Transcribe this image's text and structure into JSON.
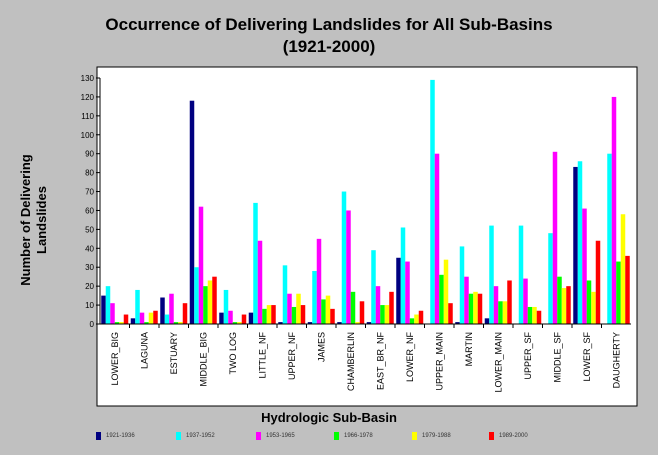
{
  "chart_data": {
    "type": "bar",
    "title": "Occurrence of Delivering Landslides for All Sub-Basins",
    "subtitle": "(1921-2000)",
    "xlabel": "Hydrologic Sub-Basin",
    "ylabel": "Number of Delivering Landslides",
    "ylim": [
      0,
      130
    ],
    "yticks": [
      0,
      10,
      20,
      30,
      40,
      50,
      60,
      70,
      80,
      90,
      100,
      110,
      120,
      130
    ],
    "grid": false,
    "legend_position": "bottom",
    "categories": [
      "LOWER_BIG",
      "LAGUNA",
      "ESTUARY",
      "MIDDLE_BIG",
      "TWO LOG",
      "LITTLE_NF",
      "UPPER_NF",
      "JAMES",
      "CHAMBERLIN",
      "EAST_BR_NF",
      "LOWER_NF",
      "UPPER_MAIN",
      "MARTIN",
      "LOWER_MAIN",
      "UPPER_SF",
      "MIDDLE_SF",
      "LOWER_SF",
      "DAUGHERTY"
    ],
    "series": [
      {
        "name": "1921-1936",
        "color": "#000080",
        "values": [
          15,
          3,
          14,
          118,
          6,
          6,
          1,
          1,
          1,
          1,
          35,
          0,
          1,
          3,
          0,
          0,
          83,
          0
        ]
      },
      {
        "name": "1937-1952",
        "color": "#00ffff",
        "values": [
          20,
          18,
          5,
          30,
          18,
          64,
          31,
          28,
          70,
          39,
          51,
          129,
          41,
          52,
          52,
          48,
          86,
          90
        ]
      },
      {
        "name": "1953-1965",
        "color": "#ff00ff",
        "values": [
          11,
          6,
          16,
          62,
          7,
          44,
          16,
          45,
          60,
          20,
          33,
          90,
          25,
          20,
          24,
          91,
          61,
          120
        ]
      },
      {
        "name": "1966-1978",
        "color": "#00ff00",
        "values": [
          1,
          1,
          1,
          20,
          1,
          8,
          9,
          13,
          17,
          10,
          3,
          26,
          16,
          12,
          9,
          25,
          23,
          33
        ]
      },
      {
        "name": "1979-1988",
        "color": "#ffff00",
        "values": [
          1,
          6,
          1,
          23,
          1,
          10,
          16,
          15,
          1,
          10,
          5,
          34,
          17,
          12,
          9,
          19,
          17,
          58
        ]
      },
      {
        "name": "1989-2000",
        "color": "#ff0000",
        "values": [
          5,
          7,
          11,
          25,
          5,
          10,
          10,
          8,
          12,
          17,
          7,
          11,
          16,
          23,
          7,
          20,
          44,
          36
        ]
      }
    ]
  }
}
